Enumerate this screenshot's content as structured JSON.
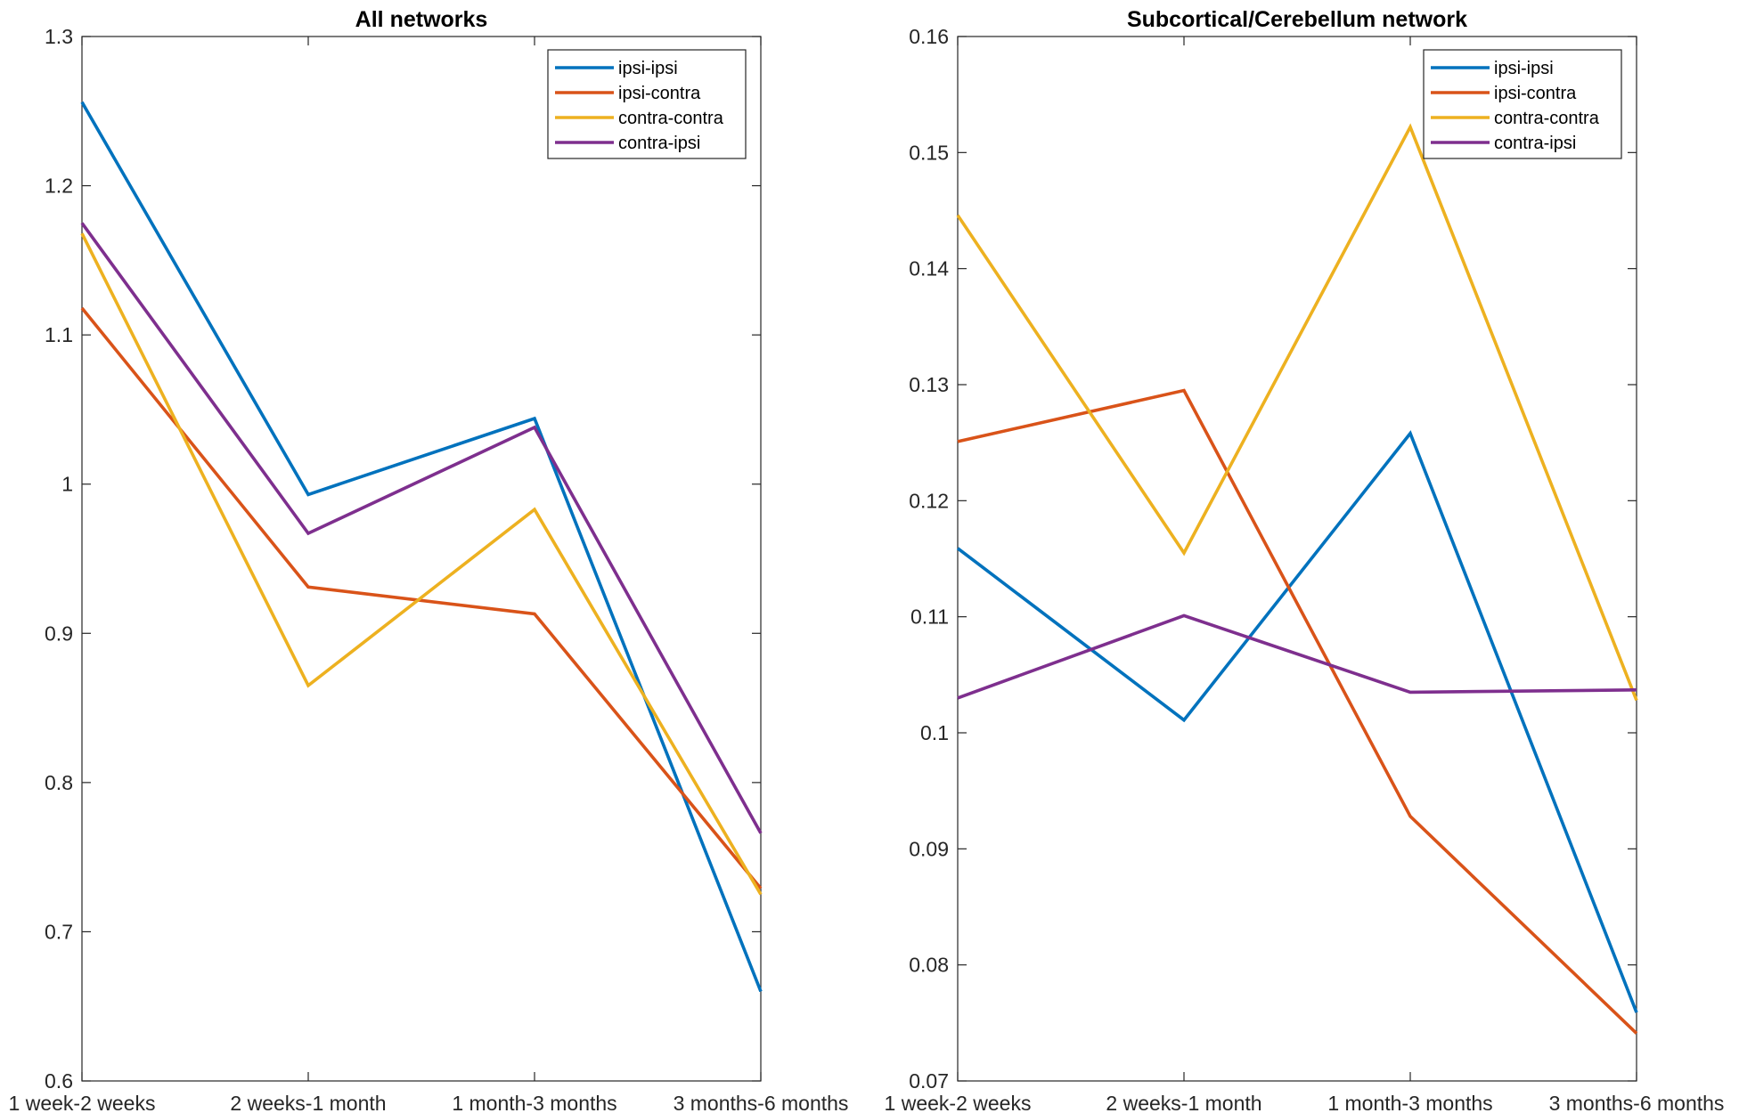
{
  "chart_data": [
    {
      "type": "line",
      "title": "All networks",
      "xlabel": "",
      "ylabel": "",
      "categories": [
        "1 week-2 weeks",
        "2 weeks-1 month",
        "1 month-3 months",
        "3 months-6 months"
      ],
      "ylim": [
        0.6,
        1.3
      ],
      "yticks": [
        0.6,
        0.7,
        0.8,
        0.9,
        1,
        1.1,
        1.2,
        1.3
      ],
      "yticklabels": [
        "0.6",
        "0.7",
        "0.8",
        "0.9",
        "1",
        "1.1",
        "1.2",
        "1.3"
      ],
      "grid": false,
      "legend_position": "top-right",
      "series": [
        {
          "name": "ipsi-ipsi",
          "color": "#0072BD",
          "values": [
            1.256,
            0.993,
            1.044,
            0.66
          ]
        },
        {
          "name": "ipsi-contra",
          "color": "#D95319",
          "values": [
            1.118,
            0.931,
            0.913,
            0.729
          ]
        },
        {
          "name": "contra-contra",
          "color": "#EDB120",
          "values": [
            1.168,
            0.865,
            0.983,
            0.725
          ]
        },
        {
          "name": "contra-ipsi",
          "color": "#7E2F8E",
          "values": [
            1.175,
            0.967,
            1.038,
            0.766
          ]
        }
      ]
    },
    {
      "type": "line",
      "title": "Subcortical/Cerebellum network",
      "xlabel": "",
      "ylabel": "",
      "categories": [
        "1 week-2 weeks",
        "2 weeks-1 month",
        "1 month-3 months",
        "3 months-6 months"
      ],
      "ylim": [
        0.07,
        0.16
      ],
      "yticks": [
        0.07,
        0.08,
        0.09,
        0.1,
        0.11,
        0.12,
        0.13,
        0.14,
        0.15,
        0.16
      ],
      "yticklabels": [
        "0.07",
        "0.08",
        "0.09",
        "0.1",
        "0.11",
        "0.12",
        "0.13",
        "0.14",
        "0.15",
        "0.16"
      ],
      "grid": false,
      "legend_position": "top-right",
      "series": [
        {
          "name": "ipsi-ipsi",
          "color": "#0072BD",
          "values": [
            0.1159,
            0.1011,
            0.1258,
            0.0759
          ]
        },
        {
          "name": "ipsi-contra",
          "color": "#D95319",
          "values": [
            0.1251,
            0.1295,
            0.0928,
            0.0741
          ]
        },
        {
          "name": "contra-contra",
          "color": "#EDB120",
          "values": [
            0.1446,
            0.1155,
            0.1522,
            0.1028
          ]
        },
        {
          "name": "contra-ipsi",
          "color": "#7E2F8E",
          "values": [
            0.103,
            0.1101,
            0.1035,
            0.1037
          ]
        }
      ]
    }
  ]
}
